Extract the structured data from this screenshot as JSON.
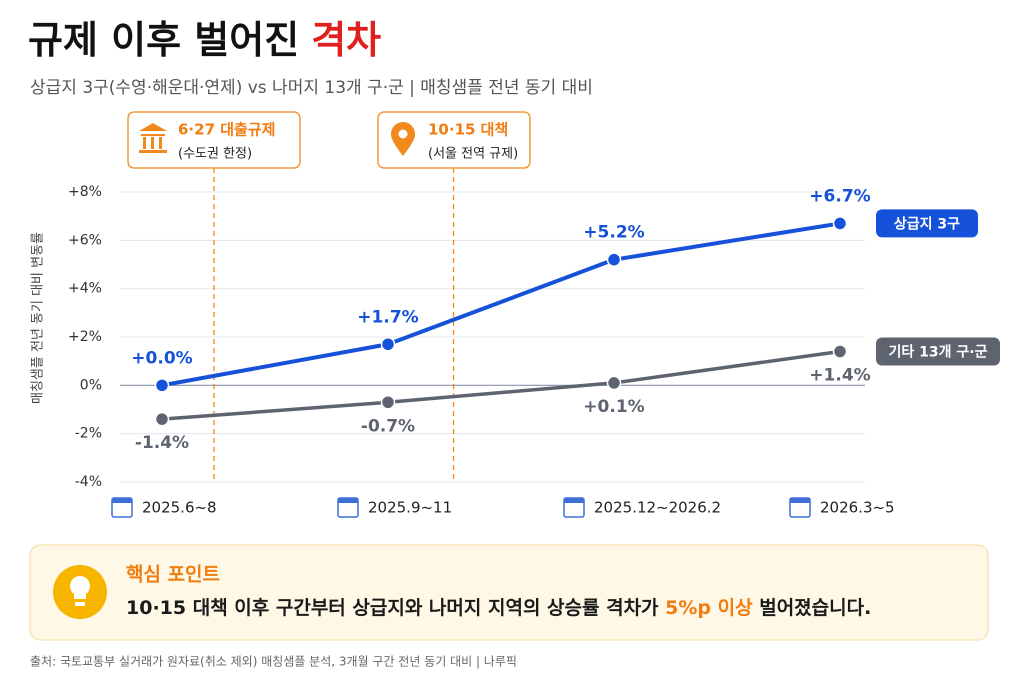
{
  "chart_data": {
    "type": "line",
    "title": "규제 이후 벌어진",
    "title_highlight": "격차",
    "subtitle": "상급지 3구(수영·해운대·연제) vs 나머지 13개 구·군 | 매칭샘플 전년 동기 대비",
    "y_label": "매칭샘플 전년 동기 대비 변동률",
    "categories": [
      "2025.6~8",
      "2025.9~11",
      "2025.12~2026.2",
      "2026.3~5"
    ],
    "ylim": [
      -4,
      8
    ],
    "yticks": [
      {
        "value": 8,
        "label": "+8%"
      },
      {
        "value": 6,
        "label": "+6%"
      },
      {
        "value": 4,
        "label": "+4%"
      },
      {
        "value": 2,
        "label": "+2%"
      },
      {
        "value": 0,
        "label": "0%"
      },
      {
        "value": -2,
        "label": "-2%"
      },
      {
        "value": -4,
        "label": "-4%"
      }
    ],
    "series": [
      {
        "name": "상급지 3구",
        "color": "#1652d9",
        "values": [
          0.0,
          1.7,
          5.2,
          6.7
        ],
        "value_labels": [
          "+0.0%",
          "+1.7%",
          "+5.2%",
          "+6.7%"
        ]
      },
      {
        "name": "기타 13개 구·군",
        "color": "#5d6470",
        "values": [
          -1.4,
          -0.7,
          0.1,
          1.4
        ],
        "value_labels": [
          "-1.4%",
          "-0.7%",
          "+0.1%",
          "+1.4%"
        ]
      }
    ],
    "annotations": [
      {
        "label": "6·27 대출규제",
        "note": "(수도권 한정)"
      },
      {
        "label": "10·15 대책",
        "note": "(서울 전역 규제)"
      }
    ],
    "key_point": {
      "heading": "핵심 포인트",
      "text_before": "10·15 대책 이후 구간부터 상급지와 나머지 지역의 상승률 격차가 ",
      "text_highlight": "5%p 이상",
      "text_after": " 벌어졌습니다."
    },
    "source": "출처: 국토교통부 실거래가 원자료(취소 제외) 매칭샘플 분석, 3개월 구간 전년 동기 대비 | 나루픽"
  }
}
